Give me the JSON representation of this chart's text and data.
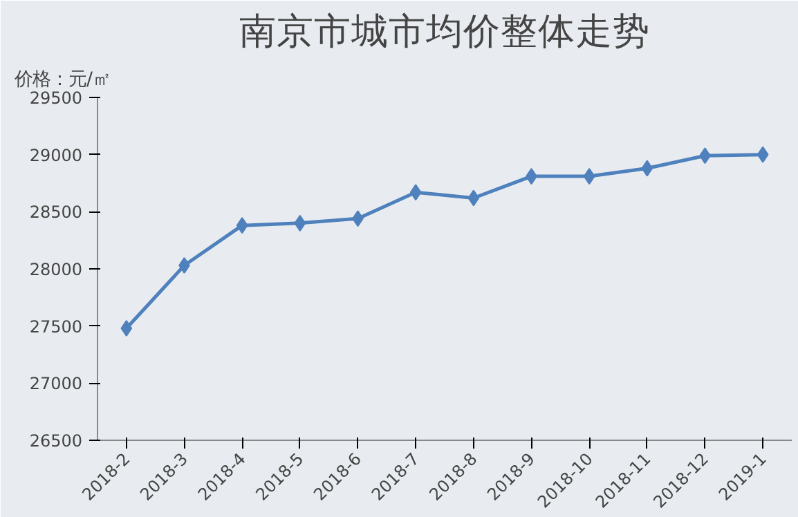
{
  "chart_data": {
    "type": "line",
    "title": "南京市城市均价整体走势",
    "ylabel": "价格：元/㎡",
    "categories": [
      "2018-2",
      "2018-3",
      "2018-4",
      "2018-5",
      "2018-6",
      "2018-7",
      "2018-8",
      "2018-9",
      "2018-10",
      "2018-11",
      "2018-12",
      "2019-1"
    ],
    "series": [
      {
        "color": "#4f81bd",
        "values": [
          27480,
          28030,
          28380,
          28400,
          28440,
          28670,
          28620,
          28810,
          28810,
          28880,
          28990,
          29000
        ]
      }
    ],
    "ylim": [
      26500,
      29500
    ],
    "yticks": [
      26500,
      27000,
      27500,
      28000,
      28500,
      29000,
      29500
    ],
    "marker": "diamond",
    "line_style": "solid"
  }
}
